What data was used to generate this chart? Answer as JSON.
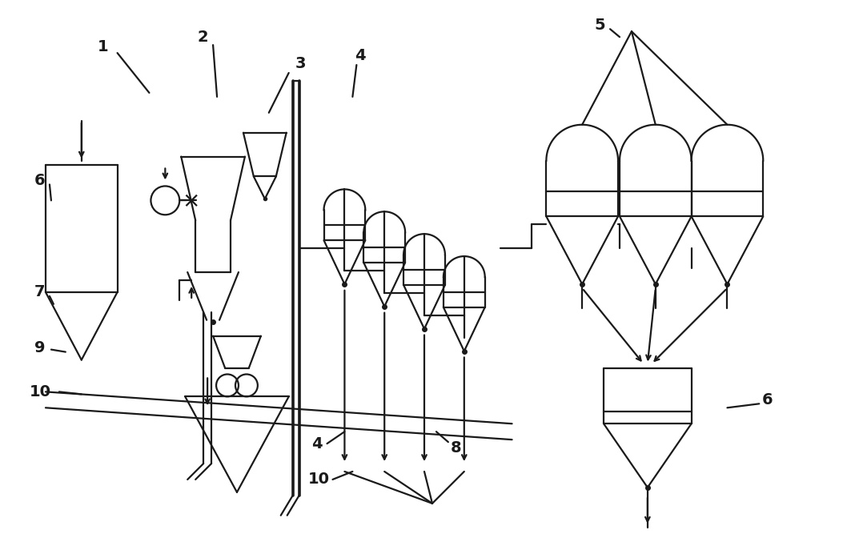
{
  "bg_color": "#ffffff",
  "lc": "#1a1a1a",
  "lw": 1.6,
  "figsize": [
    10.63,
    6.77
  ],
  "dpi": 100
}
